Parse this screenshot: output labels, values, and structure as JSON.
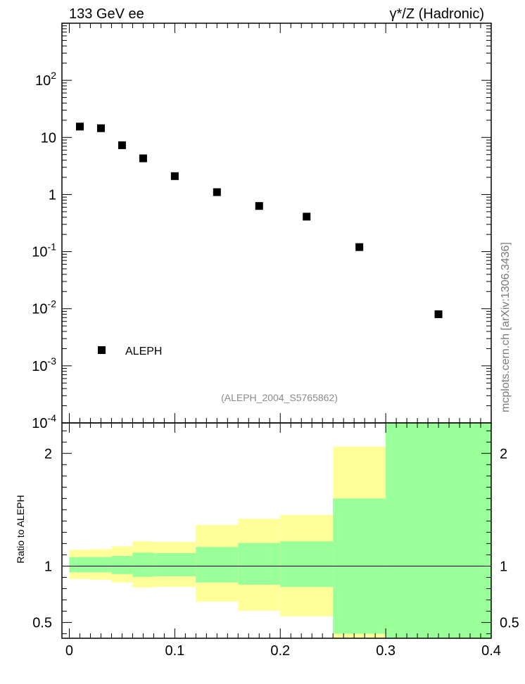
{
  "header": {
    "left_title": "133 GeV ee",
    "right_title": "γ*/Z (Hadronic)"
  },
  "side_label": "mcplots.cern.ch [arXiv:1306.3436]",
  "analysis_tag": "(ALEPH_2004_S5765862)",
  "legend": {
    "label": "ALEPH"
  },
  "colors": {
    "band_outer": "#ffff99",
    "band_inner": "#99ff99",
    "marker": "#000000"
  },
  "chart_data": [
    {
      "type": "scatter",
      "title": "",
      "xlabel": "",
      "ylabel": "",
      "yscale": "log",
      "xlim": [
        -0.007,
        0.4
      ],
      "ylim": [
        0.0001,
        1000
      ],
      "y_tick_labels": [
        "10^-4",
        "10^-3",
        "10^-2",
        "10^-1",
        "1",
        "10",
        "10^2"
      ],
      "series": [
        {
          "name": "ALEPH",
          "marker": "square",
          "x": [
            0.01,
            0.03,
            0.05,
            0.07,
            0.1,
            0.14,
            0.18,
            0.225,
            0.275,
            0.35
          ],
          "y": [
            15.5,
            14.5,
            7.3,
            4.3,
            2.1,
            1.1,
            0.63,
            0.41,
            0.12,
            0.008
          ]
        }
      ]
    },
    {
      "type": "area",
      "title": "",
      "xlabel": "",
      "ylabel": "Ratio to ALEPH",
      "xlim": [
        -0.007,
        0.4
      ],
      "ylim": [
        0.36,
        2.27
      ],
      "x_tick_labels": [
        "0",
        "0.1",
        "0.2",
        "0.3",
        "0.4"
      ],
      "y_tick_labels": [
        "0.5",
        "1",
        "2"
      ],
      "reference_line": 1,
      "bins": [
        {
          "x_lo": 0.0,
          "x_hi": 0.02,
          "outer_lo": 0.885,
          "outer_hi": 1.145,
          "inner_lo": 0.945,
          "inner_hi": 1.08
        },
        {
          "x_lo": 0.02,
          "x_hi": 0.04,
          "outer_lo": 0.88,
          "outer_hi": 1.15,
          "inner_lo": 0.945,
          "inner_hi": 1.08
        },
        {
          "x_lo": 0.04,
          "x_hi": 0.06,
          "outer_lo": 0.855,
          "outer_hi": 1.175,
          "inner_lo": 0.93,
          "inner_hi": 1.09
        },
        {
          "x_lo": 0.06,
          "x_hi": 0.08,
          "outer_lo": 0.81,
          "outer_hi": 1.22,
          "inner_lo": 0.905,
          "inner_hi": 1.12
        },
        {
          "x_lo": 0.08,
          "x_hi": 0.12,
          "outer_lo": 0.815,
          "outer_hi": 1.215,
          "inner_lo": 0.91,
          "inner_hi": 1.115
        },
        {
          "x_lo": 0.12,
          "x_hi": 0.16,
          "outer_lo": 0.685,
          "outer_hi": 1.365,
          "inner_lo": 0.855,
          "inner_hi": 1.17
        },
        {
          "x_lo": 0.16,
          "x_hi": 0.2,
          "outer_lo": 0.605,
          "outer_hi": 1.42,
          "inner_lo": 0.835,
          "inner_hi": 1.205
        },
        {
          "x_lo": 0.2,
          "x_hi": 0.25,
          "outer_lo": 0.555,
          "outer_hi": 1.455,
          "inner_lo": 0.815,
          "inner_hi": 1.22
        },
        {
          "x_lo": 0.25,
          "x_hi": 0.3,
          "outer_lo": 0.36,
          "outer_hi": 2.06,
          "inner_lo": 0.4,
          "inner_hi": 1.6
        },
        {
          "x_lo": 0.3,
          "x_hi": 0.4,
          "outer_lo": 0.36,
          "outer_hi": 2.27,
          "inner_lo": 0.36,
          "inner_hi": 2.27
        }
      ]
    }
  ]
}
